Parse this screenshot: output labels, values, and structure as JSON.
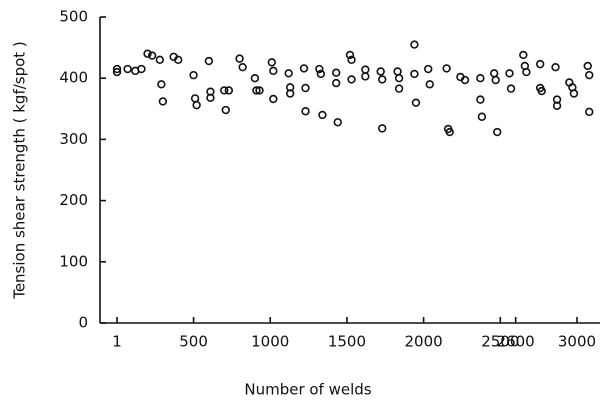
{
  "chart_data": {
    "type": "scatter",
    "x_label": "Number of welds",
    "y_label": "Tension shear strength ( kgf/spot )",
    "color": "#111111",
    "xlim": [
      -110,
      3150
    ],
    "ylim": [
      0,
      500
    ],
    "xticks": [
      1,
      500,
      1000,
      1500,
      2000,
      2500,
      2600,
      3000
    ],
    "yticks": [
      0,
      100,
      200,
      300,
      400,
      500
    ],
    "x": [
      1,
      1,
      70,
      120,
      160,
      200,
      230,
      280,
      290,
      300,
      370,
      400,
      500,
      510,
      520,
      600,
      610,
      610,
      700,
      710,
      730,
      800,
      820,
      900,
      910,
      930,
      1010,
      1020,
      1020,
      1120,
      1130,
      1130,
      1220,
      1230,
      1230,
      1320,
      1330,
      1340,
      1430,
      1430,
      1440,
      1520,
      1530,
      1530,
      1620,
      1620,
      1720,
      1730,
      1730,
      1830,
      1840,
      1840,
      1940,
      1940,
      1950,
      2030,
      2040,
      2150,
      2160,
      2170,
      2240,
      2270,
      2370,
      2370,
      2380,
      2460,
      2470,
      2480,
      2560,
      2570,
      2650,
      2660,
      2670,
      2760,
      2760,
      2770,
      2860,
      2870,
      2870,
      2950,
      2970,
      2980,
      3070,
      3080,
      3080
    ],
    "values": [
      410,
      415,
      415,
      412,
      415,
      440,
      437,
      430,
      390,
      362,
      435,
      430,
      405,
      367,
      356,
      428,
      378,
      368,
      380,
      348,
      380,
      432,
      418,
      400,
      380,
      380,
      426,
      412,
      366,
      408,
      385,
      375,
      416,
      384,
      346,
      415,
      407,
      340,
      409,
      392,
      328,
      438,
      430,
      398,
      414,
      403,
      411,
      398,
      318,
      411,
      400,
      383,
      455,
      407,
      360,
      415,
      390,
      416,
      317,
      312,
      402,
      397,
      400,
      365,
      337,
      408,
      397,
      312,
      408,
      383,
      438,
      420,
      410,
      423,
      384,
      379,
      418,
      365,
      355,
      393,
      385,
      375,
      420,
      405,
      345
    ]
  }
}
